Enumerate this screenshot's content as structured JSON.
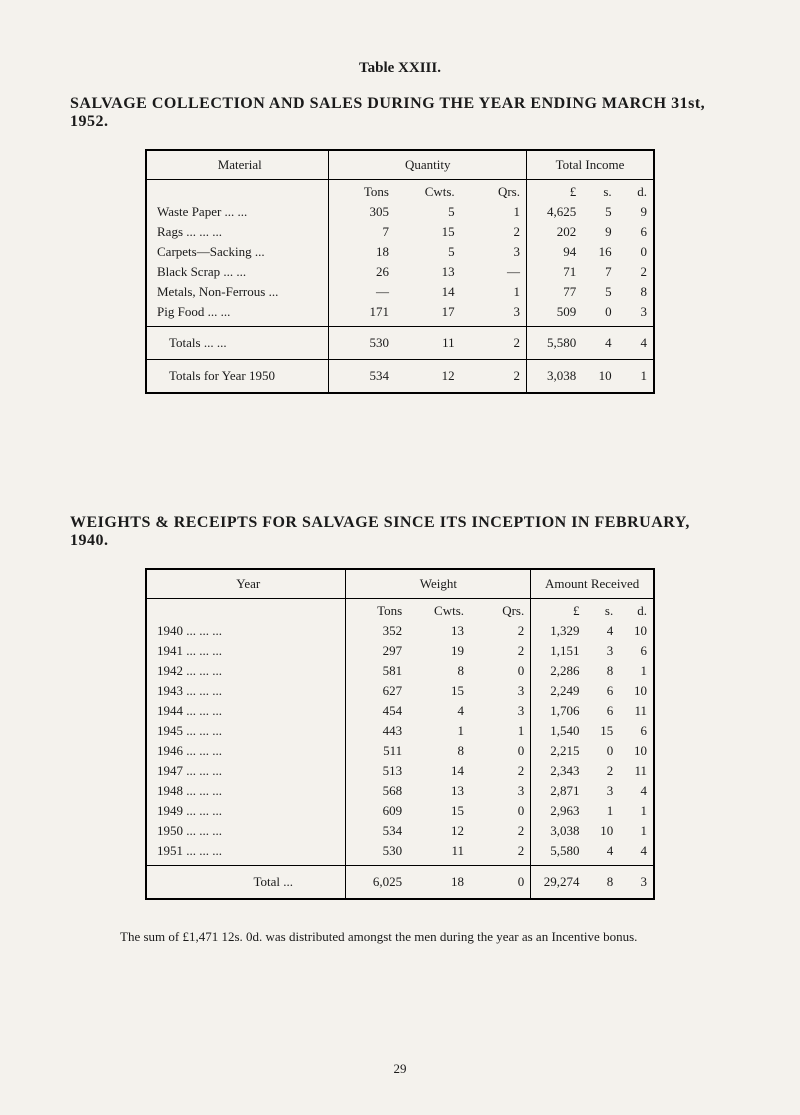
{
  "page": {
    "table_label": "Table XXIII.",
    "heading1": "SALVAGE COLLECTION AND SALES DURING THE YEAR ENDING MARCH 31st, 1952.",
    "heading2": "WEIGHTS & RECEIPTS FOR SALVAGE SINCE ITS INCEPTION IN FEBRUARY, 1940.",
    "footer_note": "The sum of £1,471 12s. 0d. was distributed amongst the men during the year as an Incentive bonus.",
    "page_number": "29"
  },
  "table1": {
    "headers": {
      "material": "Material",
      "quantity": "Quantity",
      "income": "Total Income"
    },
    "subheaders": {
      "tons": "Tons",
      "cwts": "Cwts.",
      "qrs": "Qrs.",
      "l": "£",
      "s": "s.",
      "d": "d."
    },
    "rows": [
      {
        "material": "Waste Paper   ...      ...",
        "tons": "305",
        "cwts": "5",
        "qrs": "1",
        "l": "4,625",
        "s": "5",
        "d": "9"
      },
      {
        "material": "Rags    ...      ...      ...",
        "tons": "7",
        "cwts": "15",
        "qrs": "2",
        "l": "202",
        "s": "9",
        "d": "6"
      },
      {
        "material": "Carpets—Sacking      ...",
        "tons": "18",
        "cwts": "5",
        "qrs": "3",
        "l": "94",
        "s": "16",
        "d": "0"
      },
      {
        "material": "Black Scrap      ...      ...",
        "tons": "26",
        "cwts": "13",
        "qrs": "—",
        "l": "71",
        "s": "7",
        "d": "2"
      },
      {
        "material": "Metals, Non-Ferrous ...",
        "tons": "—",
        "cwts": "14",
        "qrs": "1",
        "l": "77",
        "s": "5",
        "d": "8"
      },
      {
        "material": "Pig Food            ...      ...",
        "tons": "171",
        "cwts": "17",
        "qrs": "3",
        "l": "509",
        "s": "0",
        "d": "3"
      }
    ],
    "totals": {
      "label": "Totals          ...      ...",
      "tons": "530",
      "cwts": "11",
      "qrs": "2",
      "l": "5,580",
      "s": "4",
      "d": "4"
    },
    "year_totals": {
      "label": "Totals for Year 1950",
      "tons": "534",
      "cwts": "12",
      "qrs": "2",
      "l": "3,038",
      "s": "10",
      "d": "1"
    }
  },
  "table2": {
    "headers": {
      "year": "Year",
      "weight": "Weight",
      "amount": "Amount Received"
    },
    "subheaders": {
      "tons": "Tons",
      "cwts": "Cwts.",
      "qrs": "Qrs.",
      "l": "£",
      "s": "s.",
      "d": "d."
    },
    "rows": [
      {
        "year": "1940    ...      ...      ...",
        "tons": "352",
        "cwts": "13",
        "qrs": "2",
        "l": "1,329",
        "s": "4",
        "d": "10"
      },
      {
        "year": "1941    ...      ...      ...",
        "tons": "297",
        "cwts": "19",
        "qrs": "2",
        "l": "1,151",
        "s": "3",
        "d": "6"
      },
      {
        "year": "1942    ...      ...      ...",
        "tons": "581",
        "cwts": "8",
        "qrs": "0",
        "l": "2,286",
        "s": "8",
        "d": "1"
      },
      {
        "year": "1943    ...      ...      ...",
        "tons": "627",
        "cwts": "15",
        "qrs": "3",
        "l": "2,249",
        "s": "6",
        "d": "10"
      },
      {
        "year": "1944    ...      ...      ...",
        "tons": "454",
        "cwts": "4",
        "qrs": "3",
        "l": "1,706",
        "s": "6",
        "d": "11"
      },
      {
        "year": "1945    ...      ...      ...",
        "tons": "443",
        "cwts": "1",
        "qrs": "1",
        "l": "1,540",
        "s": "15",
        "d": "6"
      },
      {
        "year": "1946    ...      ...      ...",
        "tons": "511",
        "cwts": "8",
        "qrs": "0",
        "l": "2,215",
        "s": "0",
        "d": "10"
      },
      {
        "year": "1947    ...      ...      ...",
        "tons": "513",
        "cwts": "14",
        "qrs": "2",
        "l": "2,343",
        "s": "2",
        "d": "11"
      },
      {
        "year": "1948    ...      ...      ...",
        "tons": "568",
        "cwts": "13",
        "qrs": "3",
        "l": "2,871",
        "s": "3",
        "d": "4"
      },
      {
        "year": "1949    ...      ...      ...",
        "tons": "609",
        "cwts": "15",
        "qrs": "0",
        "l": "2,963",
        "s": "1",
        "d": "1"
      },
      {
        "year": "1950    ...      ...      ...",
        "tons": "534",
        "cwts": "12",
        "qrs": "2",
        "l": "3,038",
        "s": "10",
        "d": "1"
      },
      {
        "year": "1951    ...      ...      ...",
        "tons": "530",
        "cwts": "11",
        "qrs": "2",
        "l": "5,580",
        "s": "4",
        "d": "4"
      }
    ],
    "totals": {
      "label": "Total      ...",
      "tons": "6,025",
      "cwts": "18",
      "qrs": "0",
      "l": "29,274",
      "s": "8",
      "d": "3"
    }
  }
}
